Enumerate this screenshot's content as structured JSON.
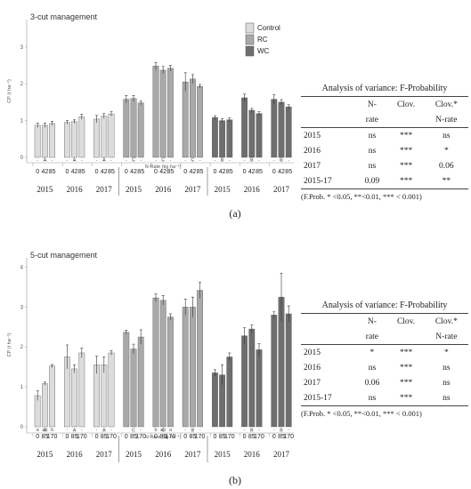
{
  "chart_data": [
    {
      "type": "bar",
      "title": "3-cut management",
      "ylabel": "CP (t ha⁻¹)",
      "xlabel": "N-Rate (kg ha⁻¹)",
      "ylim": [
        0,
        3.6
      ],
      "yticks": [
        "3",
        "2",
        "1",
        "0"
      ],
      "legend": [
        "Control",
        "RC",
        "WC"
      ],
      "legend_position": "top-right",
      "colors": {
        "Control": "#dcdcdc",
        "RC": "#a9a9a9",
        "WC": "#6e6e6e"
      },
      "panel_label": "(a)",
      "groups": [
        {
          "treatment": "Control",
          "year": "2015",
          "rates": [
            "0",
            "42",
            "85"
          ],
          "values": [
            0.87,
            0.87,
            0.92
          ],
          "errors": [
            0.06,
            0.06,
            0.06
          ],
          "letters": [
            "-",
            "-",
            "-"
          ],
          "group_letter": "A"
        },
        {
          "treatment": "Control",
          "year": "2016",
          "rates": [
            "0",
            "42",
            "85"
          ],
          "values": [
            0.95,
            0.97,
            1.1
          ],
          "errors": [
            0.05,
            0.05,
            0.07
          ],
          "letters": [
            "-",
            "-",
            "-"
          ],
          "group_letter": "A"
        },
        {
          "treatment": "Control",
          "year": "2017",
          "rates": [
            "0",
            "42",
            "85"
          ],
          "values": [
            1.04,
            1.12,
            1.18
          ],
          "errors": [
            0.1,
            0.07,
            0.06
          ],
          "letters": [
            "-",
            "-",
            "-"
          ],
          "group_letter": "A"
        },
        {
          "treatment": "RC",
          "year": "2015",
          "rates": [
            "0",
            "42",
            "85"
          ],
          "values": [
            1.58,
            1.6,
            1.48
          ],
          "errors": [
            0.1,
            0.08,
            0.05
          ],
          "letters": [
            "-",
            "-",
            "-"
          ],
          "group_letter": "C"
        },
        {
          "treatment": "RC",
          "year": "2016",
          "rates": [
            "0",
            "42",
            "85"
          ],
          "values": [
            2.48,
            2.37,
            2.42
          ],
          "errors": [
            0.1,
            0.1,
            0.08
          ],
          "letters": [
            "-",
            "-",
            "-"
          ],
          "group_letter": "C"
        },
        {
          "treatment": "RC",
          "year": "2017",
          "rates": [
            "0",
            "42",
            "85"
          ],
          "values": [
            2.05,
            2.13,
            1.93
          ],
          "errors": [
            0.25,
            0.12,
            0.05
          ],
          "letters": [
            "-",
            "-",
            "-"
          ],
          "group_letter": "C"
        },
        {
          "treatment": "WC",
          "year": "2015",
          "rates": [
            "0",
            "42",
            "85"
          ],
          "values": [
            1.08,
            1.0,
            1.02
          ],
          "errors": [
            0.05,
            0.05,
            0.05
          ],
          "letters": [
            "-",
            "-",
            "-"
          ],
          "group_letter": "B"
        },
        {
          "treatment": "WC",
          "year": "2016",
          "rates": [
            "0",
            "42",
            "85"
          ],
          "values": [
            1.62,
            1.28,
            1.19
          ],
          "errors": [
            0.1,
            0.05,
            0.05
          ],
          "letters": [
            "-",
            "-",
            "-"
          ],
          "group_letter": "B"
        },
        {
          "treatment": "WC",
          "year": "2017",
          "rates": [
            "0",
            "42",
            "85"
          ],
          "values": [
            1.58,
            1.5,
            1.37
          ],
          "errors": [
            0.12,
            0.07,
            0.06
          ],
          "letters": [
            "-",
            "-",
            "-"
          ],
          "group_letter": "B"
        }
      ]
    },
    {
      "type": "bar",
      "title": "5-cut management",
      "ylabel": "CP (t ha⁻¹)",
      "xlabel": "N-Rate (kg ha⁻¹)",
      "ylim": [
        0,
        4.1
      ],
      "yticks": [
        "4",
        "3",
        "2",
        "1",
        "0"
      ],
      "colors": {
        "Control": "#dcdcdc",
        "RC": "#a9a9a9",
        "WC": "#6e6e6e"
      },
      "panel_label": "(b)",
      "groups": [
        {
          "treatment": "Control",
          "year": "2015",
          "rates": [
            "0",
            "85",
            "170"
          ],
          "values": [
            0.78,
            1.08,
            1.52
          ],
          "errors": [
            0.12,
            0.04,
            0.04
          ],
          "letters": [
            "a",
            "ab",
            "b"
          ],
          "group_letter": "A"
        },
        {
          "treatment": "Control",
          "year": "2016",
          "rates": [
            "0",
            "85",
            "170"
          ],
          "values": [
            1.75,
            1.45,
            1.85
          ],
          "errors": [
            0.3,
            0.1,
            0.12
          ],
          "letters": [
            "-",
            "-",
            "-"
          ],
          "group_letter": "A"
        },
        {
          "treatment": "Control",
          "year": "2017",
          "rates": [
            "0",
            "85",
            "170"
          ],
          "values": [
            1.55,
            1.55,
            1.85
          ],
          "errors": [
            0.22,
            0.2,
            0.06
          ],
          "letters": [
            "-",
            "-",
            "-"
          ],
          "group_letter": "A"
        },
        {
          "treatment": "RC",
          "year": "2015",
          "rates": [
            "0",
            "85",
            "170"
          ],
          "values": [
            2.37,
            1.95,
            2.25
          ],
          "errors": [
            0.05,
            0.12,
            0.18
          ],
          "letters": [
            "",
            "-",
            "-"
          ],
          "group_letter": "C"
        },
        {
          "treatment": "RC",
          "year": "2016",
          "rates": [
            "0",
            "85",
            "170"
          ],
          "values": [
            3.23,
            3.17,
            2.75
          ],
          "errors": [
            0.1,
            0.12,
            0.08
          ],
          "letters": [
            "b",
            "ab",
            "a"
          ],
          "group_letter": "C"
        },
        {
          "treatment": "RC",
          "year": "2017",
          "rates": [
            "0",
            "85",
            "170"
          ],
          "values": [
            3.0,
            3.0,
            3.42
          ],
          "errors": [
            0.2,
            0.25,
            0.2
          ],
          "letters": [
            "-",
            "-",
            "-"
          ],
          "group_letter": "B"
        },
        {
          "treatment": "WC",
          "year": "2015",
          "rates": [
            "0",
            "85",
            "170"
          ],
          "values": [
            1.35,
            1.3,
            1.75
          ],
          "errors": [
            0.08,
            0.25,
            0.1
          ],
          "letters": [
            "",
            "",
            ""
          ],
          "group_letter": ""
        },
        {
          "treatment": "WC",
          "year": "2016",
          "rates": [
            "0",
            "85",
            "170"
          ],
          "values": [
            2.28,
            2.45,
            1.93
          ],
          "errors": [
            0.2,
            0.1,
            0.15
          ],
          "letters": [
            "-",
            "-",
            "-"
          ],
          "group_letter": "B"
        },
        {
          "treatment": "WC",
          "year": "2017",
          "rates": [
            "0",
            "85",
            "170"
          ],
          "values": [
            2.8,
            3.25,
            2.83
          ],
          "errors": [
            0.08,
            0.6,
            0.2
          ],
          "letters": [
            "-",
            "-",
            "-"
          ],
          "group_letter": "B"
        }
      ]
    }
  ],
  "anova_a": {
    "title": "Analysis of variance: F-Probability",
    "header1": [
      "",
      "N-",
      "Clov.",
      "Clov.*"
    ],
    "header2": [
      "",
      "rate",
      "",
      "N-rate"
    ],
    "rows": [
      [
        "2015",
        "ns",
        "***",
        "ns"
      ],
      [
        "2016",
        "ns",
        "***",
        "*"
      ],
      [
        "2017",
        "ns",
        "***",
        "0.06"
      ],
      [
        "2015-17",
        "0.09",
        "***",
        "**"
      ]
    ],
    "note": "(F.Prob. * <0.05, **<0.01, *** < 0.001)"
  },
  "anova_b": {
    "title": "Analysis of variance: F-Probability",
    "header1": [
      "",
      "N-",
      "Clov.",
      "Clov.*"
    ],
    "header2": [
      "",
      "rate",
      "",
      "N-rate"
    ],
    "rows": [
      [
        "2015",
        "*",
        "***",
        "*"
      ],
      [
        "2016",
        "ns",
        "***",
        "ns"
      ],
      [
        "2017",
        "0.06",
        "***",
        "ns"
      ],
      [
        "2015-17",
        "ns",
        "***",
        "ns"
      ]
    ],
    "note": "(F.Prob. * <0.05, **<0.01, *** < 0.001)"
  }
}
